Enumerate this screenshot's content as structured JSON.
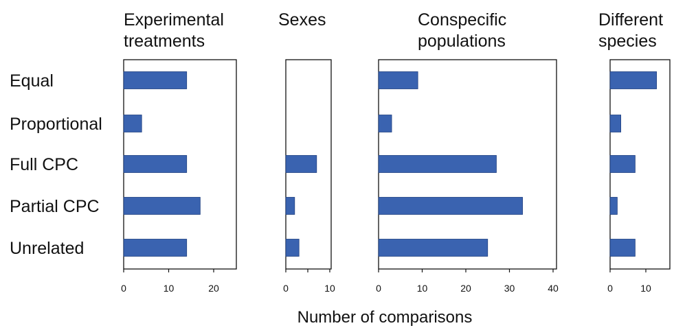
{
  "chart_data": {
    "type": "bar",
    "orientation": "horizontal",
    "categories": [
      "Equal",
      "Proportional",
      "Full CPC",
      "Partial CPC",
      "Unrelated"
    ],
    "xlabel": "Number of comparisons",
    "bar_color": "#3a63b0",
    "panels": [
      {
        "title_lines": [
          "Experimental",
          "treatments"
        ],
        "xlim": [
          0,
          25
        ],
        "ticks": [
          0,
          10,
          20
        ],
        "values": [
          14,
          4,
          14,
          17,
          14
        ]
      },
      {
        "title_lines": [
          "Sexes"
        ],
        "xlim": [
          0,
          10
        ],
        "ticks": [
          0,
          5,
          10
        ],
        "values": [
          0,
          0,
          7,
          2,
          3
        ]
      },
      {
        "title_lines": [
          "Conspecific",
          "populations"
        ],
        "xlim": [
          0,
          40
        ],
        "ticks": [
          0,
          10,
          20,
          30,
          40
        ],
        "values": [
          9,
          3,
          27,
          33,
          25
        ]
      },
      {
        "title_lines": [
          "Different",
          "species"
        ],
        "xlim": [
          0,
          15
        ],
        "ticks": [
          0,
          10
        ],
        "values": [
          13,
          3,
          7,
          2,
          7
        ]
      }
    ]
  }
}
